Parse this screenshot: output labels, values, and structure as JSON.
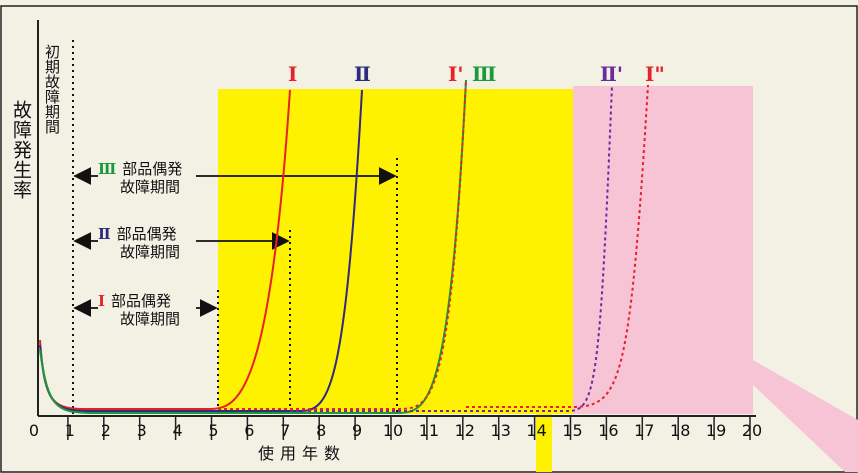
{
  "y_axis_title": "故障発生率",
  "x_axis_title": "使用年数",
  "initial_failure_period": "初期故障期間",
  "x_ticks": [
    "0",
    "1",
    "2",
    "3",
    "4",
    "5",
    "6",
    "7",
    "8",
    "9",
    "10",
    "11",
    "12",
    "13",
    "14",
    "15",
    "16",
    "17",
    "18",
    "19",
    "20"
  ],
  "curve_labels": [
    {
      "text": "Ⅰ",
      "color": "#e8202a"
    },
    {
      "text": "Ⅱ",
      "color": "#2e2a7e"
    },
    {
      "text": "Ⅰ'",
      "color": "#e8202a"
    },
    {
      "text": "Ⅲ",
      "color": "#1a9a3a"
    },
    {
      "text": "Ⅱ'",
      "color": "#6a2aa0"
    },
    {
      "text": "Ⅰ\"",
      "color": "#e8202a"
    }
  ],
  "random_failure_periods": [
    {
      "roman": "Ⅲ",
      "color": "#1a9a3a",
      "line1": "部品偶発",
      "line2": "故障期間"
    },
    {
      "roman": "Ⅱ",
      "color": "#2e2a7e",
      "line1": "部品偶発",
      "line2": "故障期間"
    },
    {
      "roman": "Ⅰ",
      "color": "#e8202a",
      "line1": "部品偶発",
      "line2": "故障期間"
    }
  ],
  "colors": {
    "yellow_region": "#fff200",
    "pink_region": "#f7c4d6",
    "background": "#f3f0e4"
  }
}
